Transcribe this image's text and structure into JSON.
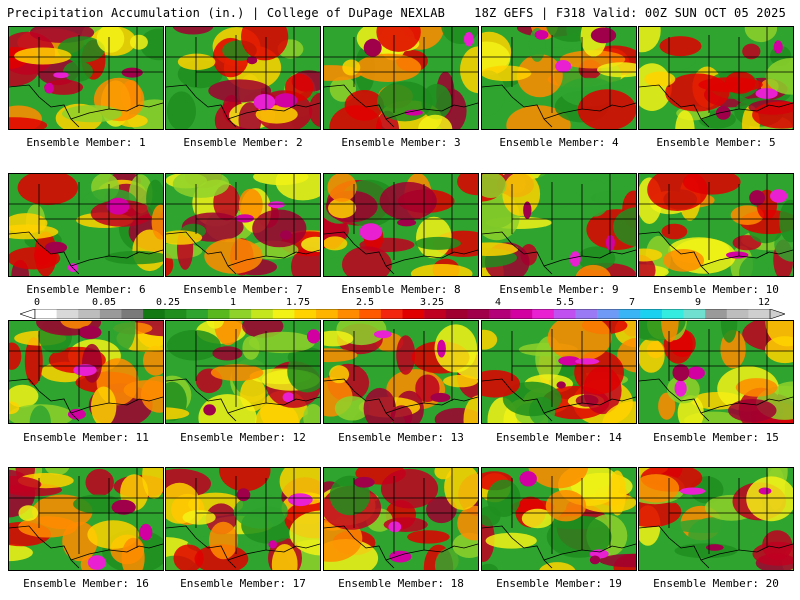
{
  "header": {
    "left": "Precipitation Accumulation (in.) | College of DuPage NEXLAB",
    "right": "18Z GEFS | F318 Valid: 00Z SUN OCT 05 2025"
  },
  "panels": [
    {
      "label": "Ensemble Member: 1"
    },
    {
      "label": "Ensemble Member: 2"
    },
    {
      "label": "Ensemble Member: 3"
    },
    {
      "label": "Ensemble Member: 4"
    },
    {
      "label": "Ensemble Member: 5"
    },
    {
      "label": "Ensemble Member: 6"
    },
    {
      "label": "Ensemble Member: 7"
    },
    {
      "label": "Ensemble Member: 8"
    },
    {
      "label": "Ensemble Member: 9"
    },
    {
      "label": "Ensemble Member: 10"
    },
    {
      "label": "Ensemble Member: 11"
    },
    {
      "label": "Ensemble Member: 12"
    },
    {
      "label": "Ensemble Member: 13"
    },
    {
      "label": "Ensemble Member: 14"
    },
    {
      "label": "Ensemble Member: 15"
    },
    {
      "label": "Ensemble Member: 16"
    },
    {
      "label": "Ensemble Member: 17"
    },
    {
      "label": "Ensemble Member: 18"
    },
    {
      "label": "Ensemble Member: 19"
    },
    {
      "label": "Ensemble Member: 20"
    }
  ],
  "colorbar": {
    "tick_labels": [
      "0",
      "0.05",
      "0.25",
      "1",
      "1.75",
      "2.5",
      "3.25",
      "4",
      "5.5",
      "7",
      "9",
      "12"
    ],
    "colors": [
      "#ffffff",
      "#d9d9d9",
      "#bdbdbd",
      "#9a9a9a",
      "#7a7a7a",
      "#137a13",
      "#1f8e1f",
      "#2fa42f",
      "#58b81e",
      "#8ed22a",
      "#c4e61f",
      "#f2f216",
      "#ffd200",
      "#ffb400",
      "#ff8c00",
      "#ff5a00",
      "#f2260f",
      "#e00000",
      "#c00020",
      "#a00030",
      "#a0004a",
      "#b40078",
      "#d200a0",
      "#e820d2",
      "#c050f0",
      "#9a7af5",
      "#6f9af5",
      "#3ab4f5",
      "#1ad2f0",
      "#34ece0",
      "#70e0d0",
      "#9a9a9a",
      "#bdbdbd",
      "#cfcfcf"
    ]
  }
}
